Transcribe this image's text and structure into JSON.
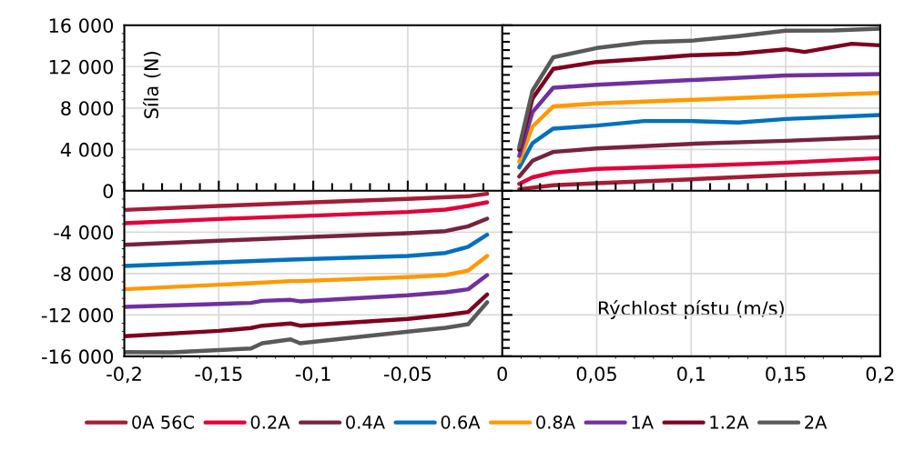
{
  "chart_data": {
    "type": "line",
    "xlabel": "Rýchlost pístu (m/s)",
    "ylabel": "Síla (N)",
    "xlim": [
      -0.2,
      0.2
    ],
    "ylim": [
      -16000,
      16000
    ],
    "xticks": [
      {
        "value": -0.2,
        "label": "-0,2"
      },
      {
        "value": -0.15,
        "label": "-0,15"
      },
      {
        "value": -0.1,
        "label": "-0,1"
      },
      {
        "value": -0.05,
        "label": "-0,05"
      },
      0,
      {
        "value": 0.05,
        "label": "0,05"
      },
      {
        "value": 0.1,
        "label": "0,1"
      },
      {
        "value": 0.15,
        "label": "0,15"
      },
      {
        "value": 0.2,
        "label": "0,2"
      }
    ],
    "yticks": [
      {
        "value": -16000,
        "label": "-16 000"
      },
      {
        "value": -12000,
        "label": "-12 000"
      },
      {
        "value": -8000,
        "label": "-8 000"
      },
      {
        "value": -4000,
        "label": "-4 000"
      },
      0,
      {
        "value": 4000,
        "label": "4 000"
      },
      {
        "value": 8000,
        "label": "8 000"
      },
      {
        "value": 12000,
        "label": "12 000"
      },
      {
        "value": 16000,
        "label": "16 000"
      }
    ],
    "grid": true,
    "legend": "bottom",
    "marker": "none",
    "line_style": "solid",
    "series": [
      {
        "name": "0A 56C",
        "color": "#a51c36",
        "x": [
          -0.2,
          -0.15,
          -0.1,
          -0.05,
          -0.018,
          -0.008,
          0,
          0.009,
          0.027,
          0.05,
          0.1,
          0.15,
          0.2
        ],
        "values": [
          -1850,
          -1470,
          -1120,
          -790,
          -530,
          -290,
          null,
          150,
          530,
          730,
          1110,
          1520,
          1850
        ]
      },
      {
        "name": "0.2A",
        "color": "#e4003a",
        "x": [
          -0.2,
          -0.15,
          -0.1,
          -0.05,
          -0.03,
          -0.018,
          -0.008,
          0,
          0.009,
          0.016,
          0.027,
          0.05,
          0.1,
          0.15,
          0.2
        ],
        "values": [
          -3140,
          -2730,
          -2400,
          -2050,
          -1820,
          -1470,
          -1120,
          null,
          670,
          1300,
          1760,
          2110,
          2400,
          2720,
          3160
        ]
      },
      {
        "name": "0.4A",
        "color": "#76233f",
        "x": [
          -0.2,
          -0.15,
          -0.1,
          -0.05,
          -0.03,
          -0.018,
          -0.008,
          0,
          0.009,
          0.016,
          0.027,
          0.05,
          0.1,
          0.15,
          0.2
        ],
        "values": [
          -5220,
          -4830,
          -4460,
          -4100,
          -3900,
          -3430,
          -2700,
          null,
          1380,
          2900,
          3750,
          4100,
          4540,
          4830,
          5190
        ]
      },
      {
        "name": "0.6A",
        "color": "#0070c0",
        "x": [
          -0.2,
          -0.15,
          -0.112,
          -0.05,
          -0.03,
          -0.018,
          -0.008,
          0,
          0.009,
          0.016,
          0.027,
          0.05,
          0.075,
          0.1,
          0.125,
          0.15,
          0.2
        ],
        "values": [
          -7270,
          -6920,
          -6650,
          -6300,
          -6010,
          -5420,
          -4250,
          null,
          2260,
          4600,
          6010,
          6300,
          6740,
          6740,
          6590,
          6940,
          7320
        ]
      },
      {
        "name": "0.8A",
        "color": "#ff9900",
        "x": [
          -0.2,
          -0.15,
          -0.133,
          -0.112,
          -0.107,
          -0.05,
          -0.03,
          -0.018,
          -0.008,
          0,
          0.009,
          0.016,
          0.027,
          0.05,
          0.1,
          0.15,
          0.2
        ],
        "values": [
          -9520,
          -9080,
          -8940,
          -8730,
          -8730,
          -8350,
          -8150,
          -7710,
          -6300,
          null,
          2790,
          6200,
          8150,
          8440,
          8790,
          9140,
          9460
        ]
      },
      {
        "name": "1A",
        "color": "#7030a0",
        "x": [
          -0.2,
          -0.15,
          -0.133,
          -0.127,
          -0.112,
          -0.107,
          -0.05,
          -0.03,
          -0.018,
          -0.008,
          0,
          0.009,
          0.016,
          0.027,
          0.05,
          0.1,
          0.15,
          0.2
        ],
        "values": [
          -11220,
          -10930,
          -10840,
          -10640,
          -10550,
          -10690,
          -10110,
          -9820,
          -9520,
          -8150,
          null,
          3370,
          7600,
          9960,
          10250,
          10700,
          11140,
          11280
        ]
      },
      {
        "name": "1.2A",
        "color": "#800020",
        "x": [
          -0.2,
          -0.15,
          -0.133,
          -0.127,
          -0.112,
          -0.107,
          -0.05,
          -0.03,
          -0.018,
          -0.008,
          0,
          0.009,
          0.016,
          0.027,
          0.05,
          0.075,
          0.1,
          0.125,
          0.15,
          0.16,
          0.185,
          0.2
        ],
        "values": [
          -14060,
          -13540,
          -13270,
          -13040,
          -12830,
          -13040,
          -12390,
          -12020,
          -11720,
          -10020,
          null,
          3960,
          8900,
          11780,
          12450,
          12750,
          13100,
          13250,
          13680,
          13420,
          14210,
          14060
        ]
      },
      {
        "name": "2A",
        "color": "#595959",
        "x": [
          -0.2,
          -0.175,
          -0.133,
          -0.127,
          -0.112,
          -0.107,
          -0.05,
          -0.03,
          -0.018,
          -0.008,
          0,
          0.009,
          0.016,
          0.027,
          0.05,
          0.075,
          0.1,
          0.125,
          0.15,
          0.175,
          0.2
        ],
        "values": [
          -15590,
          -15620,
          -15240,
          -14740,
          -14360,
          -14740,
          -13620,
          -13240,
          -12890,
          -10780,
          null,
          4220,
          9670,
          12900,
          13800,
          14350,
          14500,
          14950,
          15470,
          15500,
          15680
        ]
      }
    ]
  }
}
